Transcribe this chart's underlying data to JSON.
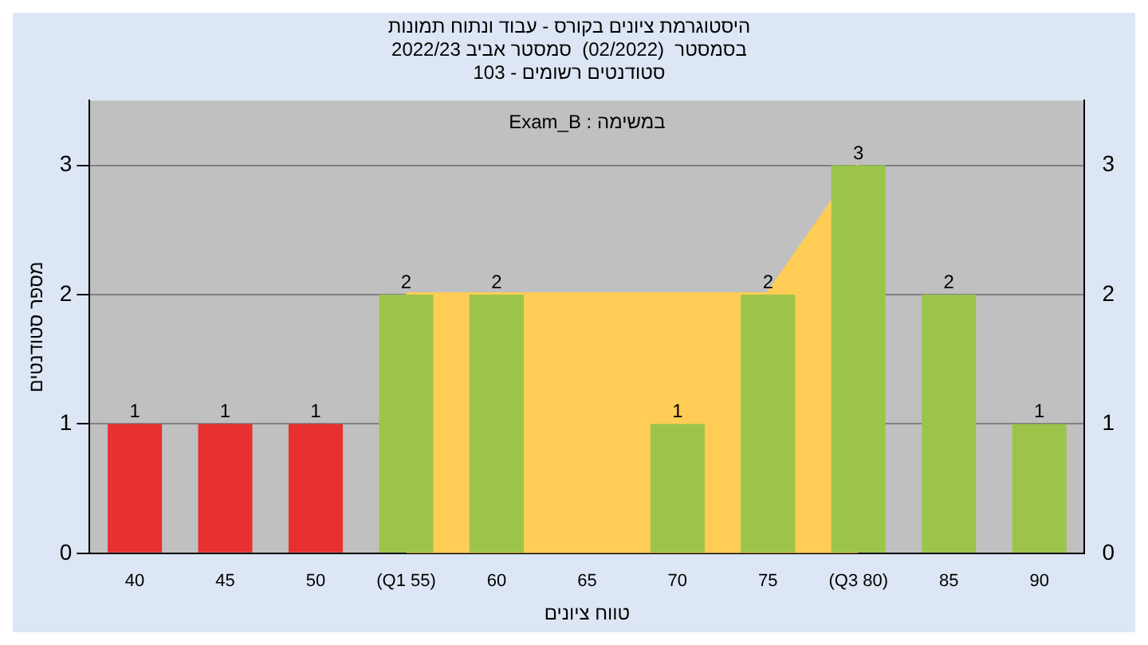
{
  "chart_data": {
    "type": "bar",
    "title": "היסטוגרמת ציונים בקורס - עבוד ונתוח תמונות",
    "subtitle": "בסמסטר  (02/2022)  סמסטר אביב 2022/23\nסטודנטים רשומים - 103",
    "xlabel": "טווח ציונים",
    "ylabel": "מספר סטודנטים",
    "annotations": [
      "Exam_B : במשימה"
    ],
    "categories": [
      "40",
      "45",
      "50",
      "(Q1 55)",
      "60",
      "65",
      "70",
      "75",
      "(Q3 80)",
      "85",
      "90"
    ],
    "series": [
      {
        "type": "area",
        "color": "#ffcc55",
        "values": [
          null,
          null,
          null,
          2,
          2,
          2,
          2,
          2,
          3,
          null,
          null
        ]
      },
      {
        "colors": [
          "#e83030",
          "#e83030",
          "#e83030",
          "#9cc44a",
          "#9cc44a",
          "#9cc44a",
          "#9cc44a",
          "#9cc44a",
          "#9cc44a",
          "#9cc44a",
          "#9cc44a"
        ],
        "values": [
          1,
          1,
          1,
          2,
          2,
          0,
          1,
          2,
          3,
          2,
          1
        ],
        "value_labels": [
          "1",
          "1",
          "1",
          "2",
          "2",
          null,
          "1",
          "2",
          "3",
          "2",
          "1"
        ]
      }
    ],
    "ylim": [
      0,
      3.5
    ],
    "yticks": [
      0,
      1,
      2,
      3
    ],
    "y2lim": [
      0,
      3.5
    ],
    "y2ticks": [
      0,
      1,
      2,
      3
    ],
    "grid": "y",
    "legend": false
  }
}
